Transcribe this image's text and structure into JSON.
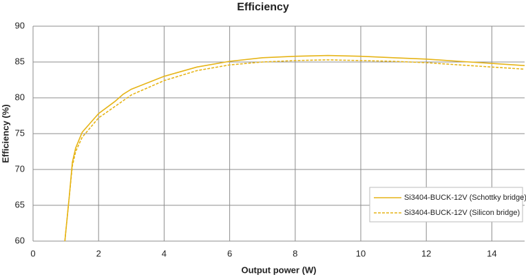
{
  "chart_data": {
    "type": "line",
    "title": "Efficiency",
    "x_label": "Output power (W)",
    "y_label": "Efficiency (%)",
    "xlim": [
      0,
      15
    ],
    "xticks": [
      0,
      2,
      4,
      6,
      8,
      10,
      12,
      14
    ],
    "ylim": [
      60,
      90
    ],
    "yticks": [
      60,
      65,
      70,
      75,
      80,
      85,
      90
    ],
    "grid": true,
    "legend": "lower right",
    "series": [
      {
        "name": "Si3404-BUCK-12V (Schottky bridge)",
        "color": "#e6b416",
        "dash": false,
        "x": [
          0.97,
          1.1,
          1.2,
          1.3,
          1.5,
          1.75,
          2,
          2.5,
          2.75,
          3,
          4,
          5,
          6,
          7,
          8,
          9,
          10,
          11,
          12,
          13,
          14,
          15
        ],
        "values": [
          60,
          66,
          71,
          73,
          75.2,
          76.5,
          77.8,
          79.5,
          80.5,
          81.2,
          83,
          84.3,
          85.1,
          85.6,
          85.8,
          85.9,
          85.8,
          85.6,
          85.4,
          85.1,
          84.8,
          84.5
        ]
      },
      {
        "name": "Si3404-BUCK-12V (Silicon bridge)",
        "color": "#e6b416",
        "dash": true,
        "x": [
          0.97,
          1.1,
          1.2,
          1.3,
          1.5,
          2,
          2.5,
          3,
          4,
          5,
          6,
          7,
          8,
          9,
          10,
          11,
          12,
          13,
          14,
          15
        ],
        "values": [
          60,
          66,
          70.5,
          72.5,
          74.5,
          77.2,
          78.8,
          80.4,
          82.4,
          83.8,
          84.6,
          85,
          85.2,
          85.3,
          85.2,
          85.1,
          84.9,
          84.6,
          84.3,
          84
        ]
      }
    ]
  }
}
